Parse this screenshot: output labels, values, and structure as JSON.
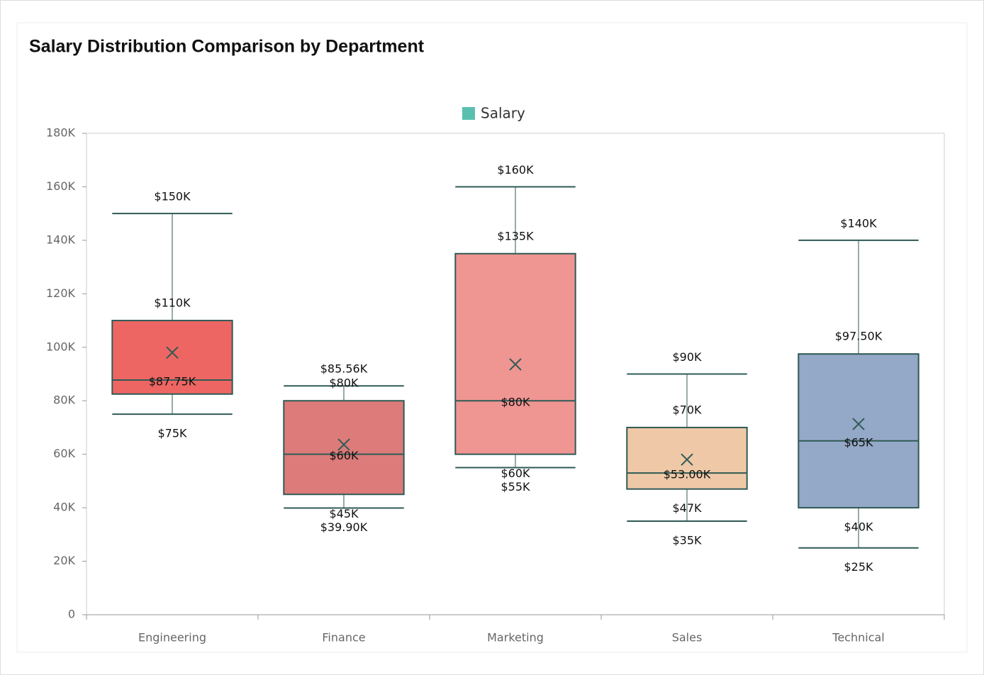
{
  "chart_data": {
    "type": "boxplot",
    "title": "Salary Distribution Comparison by Department",
    "categories": [
      "Engineering",
      "Finance",
      "Marketing",
      "Sales",
      "Technical"
    ],
    "series": [
      {
        "name": "Salary",
        "color": "#5bbfb0",
        "box_colors": [
          "#ee6663",
          "#dc7b7a",
          "#ef9592",
          "#efc9a7",
          "#94a8c7"
        ],
        "min": [
          75000,
          39900,
          55000,
          35000,
          25000
        ],
        "q1": [
          82500,
          45000,
          60000,
          47000,
          40000
        ],
        "median": [
          87750,
          60000,
          80000,
          53000,
          65000
        ],
        "q3": [
          110000,
          80000,
          135000,
          70000,
          97500
        ],
        "max": [
          150000,
          85560,
          160000,
          90000,
          140000
        ],
        "mean": [
          98000,
          63600,
          93600,
          58000,
          71300
        ],
        "value_labels": {
          "min": [
            "$75K",
            "$39.90K",
            "$55K",
            "$35K",
            "$25K"
          ],
          "q1": [
            null,
            "$45K",
            "$60K",
            "$47K",
            "$40K"
          ],
          "median": [
            "$87.75K",
            "$60K",
            "$80K",
            "$53.00K",
            "$65K"
          ],
          "q3": [
            "$110K",
            "$80K",
            "$135K",
            "$70K",
            "$97.50K"
          ],
          "max": [
            "$150K",
            "$85.56K",
            "$160K",
            "$90K",
            "$140K"
          ]
        }
      }
    ],
    "ylim": [
      0,
      180000
    ],
    "yticks": [
      0,
      {
        "value": 20000,
        "label": "20K"
      },
      {
        "value": 40000,
        "label": "40K"
      },
      {
        "value": 60000,
        "label": "60K"
      },
      {
        "value": 80000,
        "label": "80K"
      },
      {
        "value": 100000,
        "label": "100K"
      },
      {
        "value": 120000,
        "label": "120K"
      },
      {
        "value": 140000,
        "label": "140K"
      },
      {
        "value": 160000,
        "label": "160K"
      },
      {
        "value": 180000,
        "label": "180K"
      }
    ],
    "legend": "top"
  }
}
